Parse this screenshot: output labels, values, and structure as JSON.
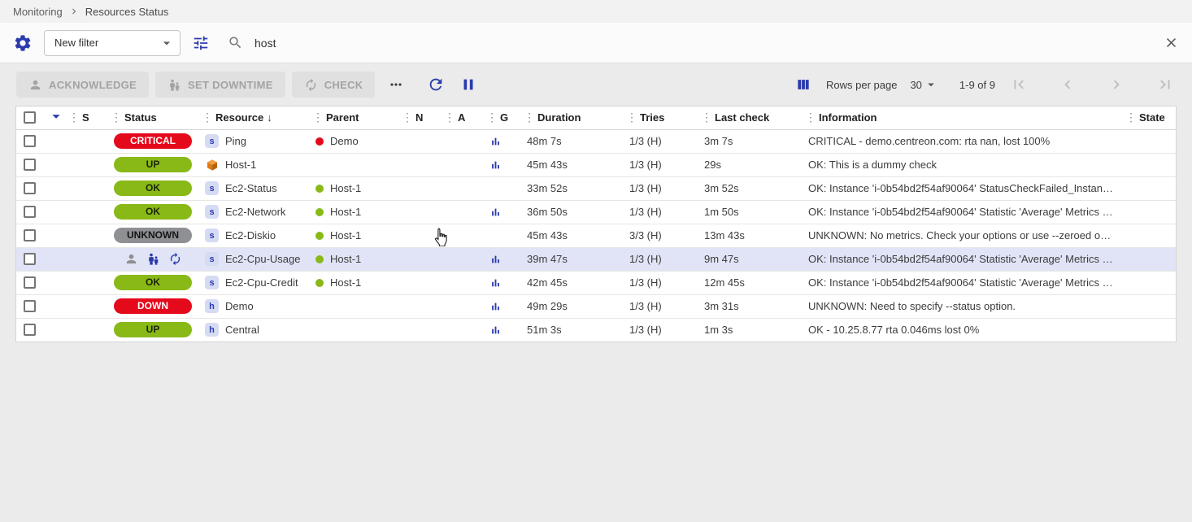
{
  "breadcrumb": {
    "items": [
      "Monitoring",
      "Resources Status"
    ]
  },
  "filter_bar": {
    "filter_select_value": "New filter",
    "search_value": "host"
  },
  "toolbar": {
    "acknowledge_label": "ACKNOWLEDGE",
    "set_downtime_label": "SET DOWNTIME",
    "check_label": "CHECK"
  },
  "pagination": {
    "rows_per_page_label": "Rows per page",
    "rows_per_page_value": "30",
    "range_label": "1-9 of 9"
  },
  "colors": {
    "primary_blue": "#2b3bac",
    "status_ok": "#88b917",
    "status_critical": "#e5091c",
    "status_unknown": "#8f9093",
    "selected_row": "#e1e4f6"
  },
  "icons": {
    "settings-icon": "gear",
    "filter-options-icon": "sliders",
    "search-icon": "magnifier",
    "clear-search-icon": "✕",
    "more-actions-icon": "⋯",
    "refresh-icon": "⟳",
    "pause-icon": "⏸",
    "columns-icon": "▥",
    "first-page-icon": "|◀",
    "previous-page-icon": "◀",
    "next-page-icon": "▶",
    "last-page-icon": "▶|",
    "select-all-caret-icon": "▼",
    "column-options-icon": "⋮",
    "sort-descending-icon": "↓",
    "graph-icon": "bar-chart",
    "acknowledged-icon": "person",
    "downtime-icon": "person-with-child",
    "refresh-status-icon": "⟳",
    "mouse-cursor": "hand-pointer"
  },
  "table": {
    "columns": [
      {
        "id": "s",
        "label": "S"
      },
      {
        "id": "status",
        "label": "Status"
      },
      {
        "id": "resource",
        "label": "Resource",
        "sorted": "desc"
      },
      {
        "id": "parent",
        "label": "Parent"
      },
      {
        "id": "n",
        "label": "N"
      },
      {
        "id": "a",
        "label": "A"
      },
      {
        "id": "g",
        "label": "G"
      },
      {
        "id": "duration",
        "label": "Duration"
      },
      {
        "id": "tries",
        "label": "Tries"
      },
      {
        "id": "last_check",
        "label": "Last check"
      },
      {
        "id": "information",
        "label": "Information"
      },
      {
        "id": "state",
        "label": "State"
      }
    ],
    "rows": [
      {
        "status_label": "CRITICAL",
        "status_type": "critical",
        "resource_badge": "s",
        "resource_name": "Ping",
        "parent_name": "Demo",
        "parent_status": "critical",
        "has_graph": true,
        "duration": "48m 7s",
        "tries": "1/3 (H)",
        "last_check": "3m 7s",
        "information": "CRITICAL - demo.centreon.com: rta nan, lost 100%"
      },
      {
        "status_label": "UP",
        "status_type": "ok",
        "resource_badge": "cube",
        "resource_name": "Host-1",
        "parent_name": null,
        "has_graph": true,
        "duration": "45m 43s",
        "tries": "1/3 (H)",
        "last_check": "29s",
        "information": "OK: This is a dummy check"
      },
      {
        "status_label": "OK",
        "status_type": "ok",
        "resource_badge": "s",
        "resource_name": "Ec2-Status",
        "parent_name": "Host-1",
        "parent_status": "ok",
        "has_graph": false,
        "duration": "33m 52s",
        "tries": "1/3 (H)",
        "last_check": "3m 52s",
        "information": "OK: Instance 'i-0b54bd2f54af90064' StatusCheckFailed_Instanc…"
      },
      {
        "status_label": "OK",
        "status_type": "ok",
        "resource_badge": "s",
        "resource_name": "Ec2-Network",
        "parent_name": "Host-1",
        "parent_status": "ok",
        "has_graph": true,
        "duration": "36m 50s",
        "tries": "1/3 (H)",
        "last_check": "1m 50s",
        "information": "OK: Instance 'i-0b54bd2f54af90064' Statistic 'Average' Metrics N…"
      },
      {
        "status_label": "UNKNOWN",
        "status_type": "unknown",
        "resource_badge": "s",
        "resource_name": "Ec2-Diskio",
        "parent_name": "Host-1",
        "parent_status": "ok",
        "has_graph": false,
        "duration": "45m 43s",
        "tries": "3/3 (H)",
        "last_check": "13m 43s",
        "information": "UNKNOWN: No metrics. Check your options or use --zeroed opti…"
      },
      {
        "status_icons": [
          "acknowledged",
          "downtime",
          "refresh-status"
        ],
        "selected": true,
        "resource_badge": "s",
        "resource_name": "Ec2-Cpu-Usage",
        "parent_name": "Host-1",
        "parent_status": "ok",
        "has_graph": true,
        "duration": "39m 47s",
        "tries": "1/3 (H)",
        "last_check": "9m 47s",
        "information": "OK: Instance 'i-0b54bd2f54af90064' Statistic 'Average' Metrics C…"
      },
      {
        "status_label": "OK",
        "status_type": "ok",
        "resource_badge": "s",
        "resource_name": "Ec2-Cpu-Credit",
        "parent_name": "Host-1",
        "parent_status": "ok",
        "has_graph": true,
        "duration": "42m 45s",
        "tries": "1/3 (H)",
        "last_check": "12m 45s",
        "information": "OK: Instance 'i-0b54bd2f54af90064' Statistic 'Average' Metrics C…"
      },
      {
        "status_label": "DOWN",
        "status_type": "critical",
        "resource_badge": "h",
        "resource_name": "Demo",
        "parent_name": null,
        "has_graph": true,
        "duration": "49m 29s",
        "tries": "1/3 (H)",
        "last_check": "3m 31s",
        "information": "UNKNOWN: Need to specify --status option."
      },
      {
        "status_label": "UP",
        "status_type": "ok",
        "resource_badge": "h",
        "resource_name": "Central",
        "parent_name": null,
        "has_graph": true,
        "duration": "51m 3s",
        "tries": "1/3 (H)",
        "last_check": "1m 3s",
        "information": "OK - 10.25.8.77 rta 0.046ms lost 0%"
      }
    ]
  }
}
